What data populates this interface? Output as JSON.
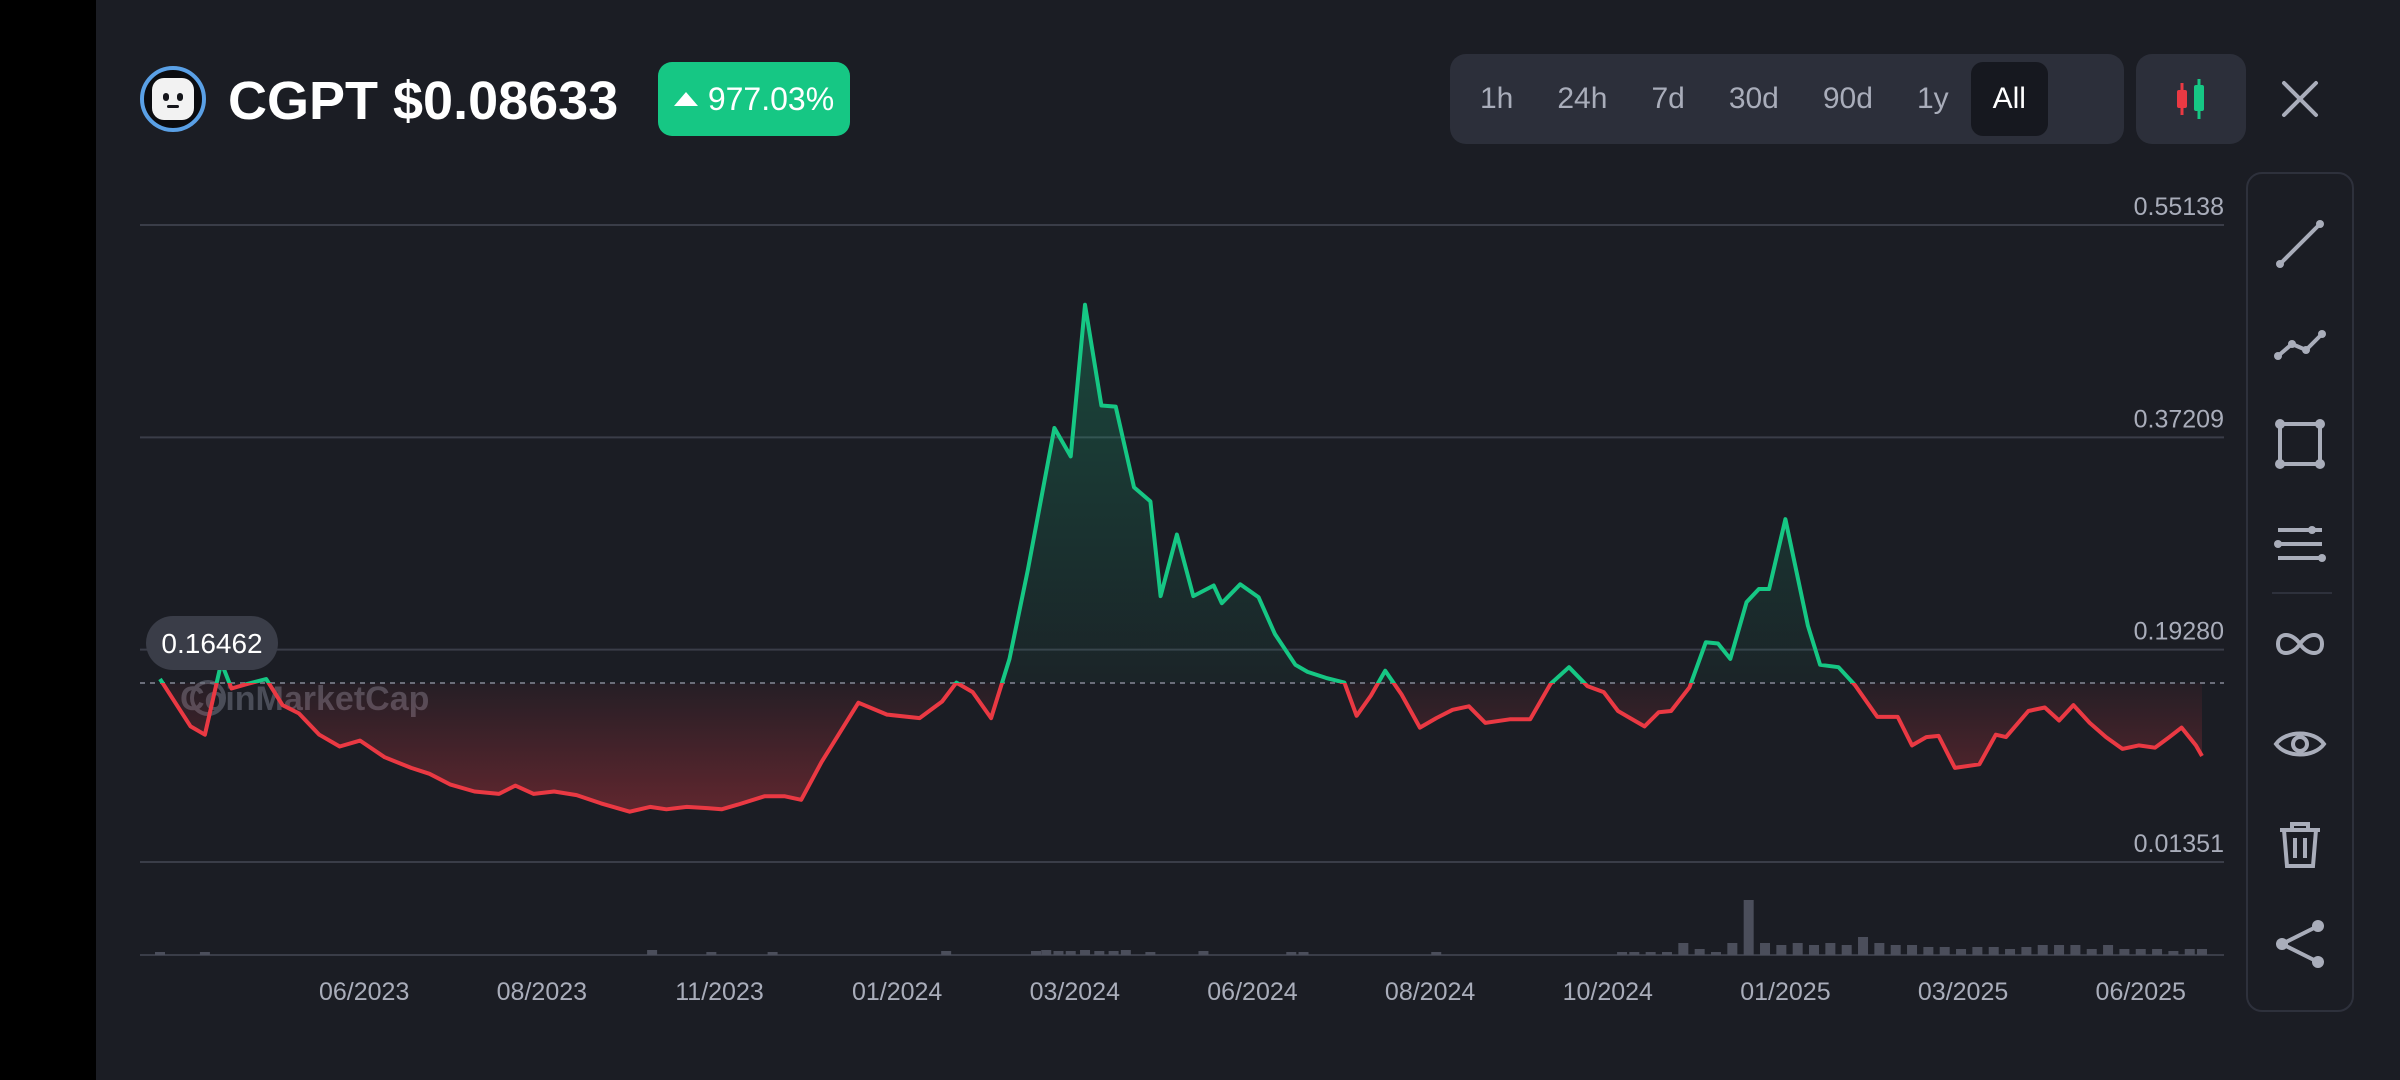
{
  "header": {
    "ticker_price": "CGPT $0.08633",
    "change": "977.03%",
    "change_color": "#16c784"
  },
  "timeframes": [
    "1h",
    "24h",
    "7d",
    "30d",
    "90d",
    "1y",
    "All"
  ],
  "active_timeframe": "All",
  "icons": {
    "logo": "chaingpt-logo",
    "candle": "candlestick-icon",
    "close": "close-icon",
    "tools": [
      "line-icon",
      "polyline-icon",
      "rectangle-icon",
      "horizontal-lines-icon",
      "infinity-icon",
      "eye-icon",
      "trash-icon",
      "share-icon"
    ]
  },
  "watermark": "CoinMarketCap",
  "chart_data": {
    "type": "line",
    "y_ticks": [
      "0.55138",
      "0.37209",
      "0.19280",
      "0.01351"
    ],
    "y_tick_values": [
      0.55138,
      0.37209,
      0.1928,
      0.01351
    ],
    "ylim": [
      0.01351,
      0.55138
    ],
    "x_ticks": [
      "06/2023",
      "08/2023",
      "11/2023",
      "01/2024",
      "03/2024",
      "06/2024",
      "08/2024",
      "10/2024",
      "01/2025",
      "03/2025",
      "06/2025"
    ],
    "x_tick_values": [
      0.1,
      0.187,
      0.274,
      0.361,
      0.448,
      0.535,
      0.622,
      0.709,
      0.796,
      0.883,
      0.97
    ],
    "reference_value": 0.16462,
    "reference_label": "0.16462",
    "colors": {
      "up": "#16c784",
      "down": "#ea3943",
      "grid": "#3a3d48"
    },
    "x": [
      0,
      0.015,
      0.022,
      0.03,
      0.035,
      0.043,
      0.052,
      0.06,
      0.068,
      0.078,
      0.088,
      0.098,
      0.11,
      0.123,
      0.132,
      0.142,
      0.154,
      0.166,
      0.174,
      0.183,
      0.193,
      0.204,
      0.216,
      0.23,
      0.24,
      0.248,
      0.258,
      0.268,
      0.275,
      0.283,
      0.296,
      0.306,
      0.314,
      0.324,
      0.342,
      0.356,
      0.372,
      0.383,
      0.39,
      0.398,
      0.407,
      0.416,
      0.425,
      0.438,
      0.446,
      0.453,
      0.461,
      0.468,
      0.477,
      0.485,
      0.49,
      0.498,
      0.506,
      0.516,
      0.52,
      0.529,
      0.538,
      0.546,
      0.556,
      0.562,
      0.571,
      0.58,
      0.586,
      0.593,
      0.6,
      0.608,
      0.617,
      0.625,
      0.633,
      0.641,
      0.649,
      0.661,
      0.671,
      0.681,
      0.69,
      0.699,
      0.707,
      0.714,
      0.72,
      0.727,
      0.734,
      0.74,
      0.749,
      0.757,
      0.763,
      0.769,
      0.777,
      0.783,
      0.788,
      0.796,
      0.807,
      0.813,
      0.822,
      0.83,
      0.841,
      0.851,
      0.858,
      0.865,
      0.871,
      0.879,
      0.891,
      0.899,
      0.904,
      0.915,
      0.923,
      0.93,
      0.937,
      0.945,
      0.953,
      0.961,
      0.969,
      0.977,
      0.984,
      0.99,
      0.997,
      1.0
    ],
    "y": [
      0.168,
      0.128,
      0.121,
      0.182,
      0.16,
      0.164,
      0.168,
      0.146,
      0.139,
      0.121,
      0.111,
      0.116,
      0.102,
      0.093,
      0.088,
      0.079,
      0.073,
      0.071,
      0.078,
      0.071,
      0.073,
      0.07,
      0.063,
      0.056,
      0.06,
      0.058,
      0.06,
      0.059,
      0.058,
      0.062,
      0.069,
      0.069,
      0.066,
      0.098,
      0.148,
      0.138,
      0.135,
      0.149,
      0.165,
      0.157,
      0.135,
      0.185,
      0.26,
      0.38,
      0.356,
      0.484,
      0.399,
      0.398,
      0.33,
      0.318,
      0.238,
      0.29,
      0.238,
      0.247,
      0.232,
      0.248,
      0.237,
      0.206,
      0.18,
      0.174,
      0.169,
      0.165,
      0.137,
      0.154,
      0.175,
      0.155,
      0.127,
      0.135,
      0.142,
      0.145,
      0.131,
      0.134,
      0.134,
      0.164,
      0.178,
      0.162,
      0.157,
      0.141,
      0.135,
      0.128,
      0.14,
      0.141,
      0.161,
      0.199,
      0.198,
      0.185,
      0.233,
      0.244,
      0.244,
      0.303,
      0.213,
      0.18,
      0.178,
      0.163,
      0.136,
      0.136,
      0.112,
      0.119,
      0.12,
      0.093,
      0.096,
      0.121,
      0.119,
      0.141,
      0.144,
      0.133,
      0.146,
      0.131,
      0.119,
      0.109,
      0.112,
      0.11,
      0.119,
      0.127,
      0.112,
      0.103
    ]
  }
}
